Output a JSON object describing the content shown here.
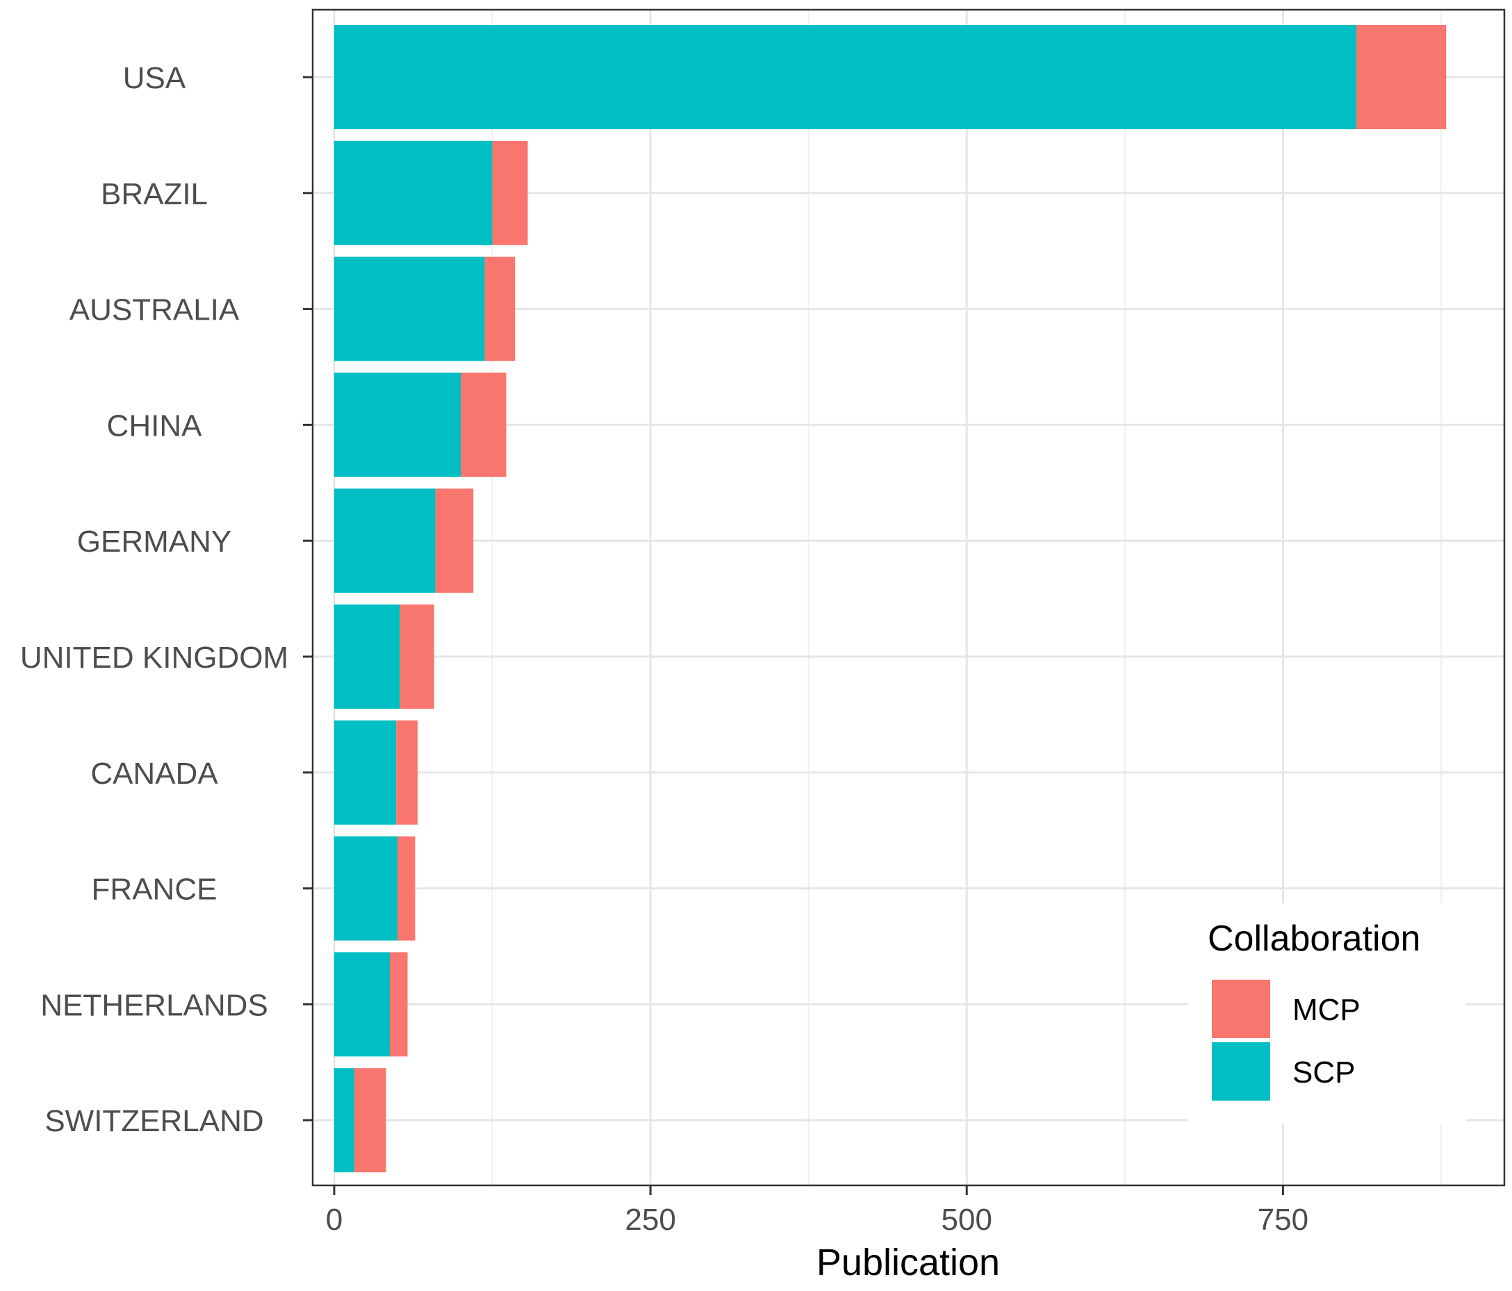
{
  "chart_data": {
    "type": "bar",
    "orientation": "horizontal",
    "stacked": true,
    "title": "",
    "xlabel": "Publication",
    "ylabel": "",
    "xlim": [
      -17,
      925
    ],
    "xticks": [
      0,
      250,
      500,
      750
    ],
    "xtick_labels": [
      "0",
      "250",
      "500",
      "750"
    ],
    "categories": [
      "USA",
      "BRAZIL",
      "AUSTRALIA",
      "CHINA",
      "GERMANY",
      "UNITED KINGDOM",
      "CANADA",
      "FRANCE",
      "NETHERLANDS",
      "SWITZERLAND"
    ],
    "series": [
      {
        "name": "SCP",
        "color": "#00BFC4",
        "values": [
          808,
          125,
          119,
          100,
          80,
          52,
          49,
          50,
          44,
          16
        ]
      },
      {
        "name": "MCP",
        "color": "#F8766D",
        "values": [
          71,
          28,
          24,
          36,
          30,
          27,
          17,
          14,
          14,
          25
        ]
      }
    ],
    "legend": {
      "title": "Collaboration",
      "position": "bottom-right-inside",
      "entries": [
        {
          "label": "MCP",
          "color": "#F8766D"
        },
        {
          "label": "SCP",
          "color": "#00BFC4"
        }
      ]
    },
    "grid": true,
    "theme": "bw"
  }
}
